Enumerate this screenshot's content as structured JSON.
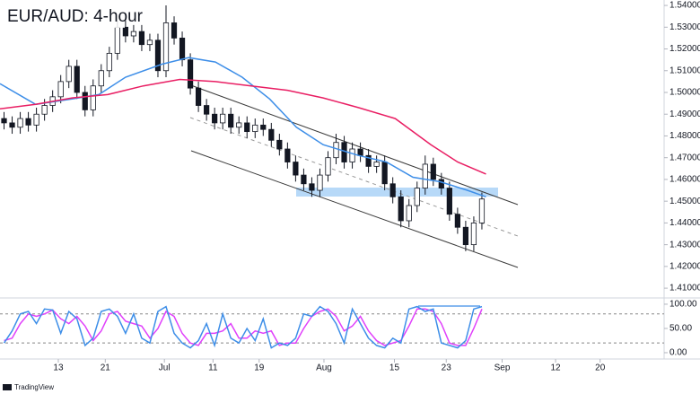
{
  "chart_data": [
    {
      "type": "candlestick",
      "title": "EUR/AUD: 4-hour",
      "x": [
        0,
        1,
        2,
        3,
        4,
        5,
        6,
        7,
        8,
        9,
        10,
        11,
        12,
        13,
        14,
        15,
        16,
        17,
        18,
        19,
        20,
        21,
        22,
        23,
        24,
        25,
        26,
        27,
        28,
        29,
        30,
        31,
        32,
        33,
        34,
        35,
        36,
        37,
        38,
        39,
        40,
        41,
        42,
        43,
        44,
        45,
        46,
        47,
        48,
        49,
        50,
        51,
        52,
        53,
        54,
        55,
        56,
        57,
        58,
        59
      ],
      "open": [
        1.488,
        1.486,
        1.484,
        1.488,
        1.485,
        1.49,
        1.494,
        1.498,
        1.505,
        1.512,
        1.5,
        1.492,
        1.503,
        1.51,
        1.518,
        1.53,
        1.526,
        1.528,
        1.522,
        1.524,
        1.51,
        1.532,
        1.525,
        1.515,
        1.502,
        1.494,
        1.49,
        1.486,
        1.49,
        1.484,
        1.486,
        1.482,
        1.485,
        1.483,
        1.478,
        1.474,
        1.468,
        1.462,
        1.458,
        1.455,
        1.462,
        1.47,
        1.477,
        1.468,
        1.474,
        1.471,
        1.466,
        1.468,
        1.458,
        1.452,
        1.441,
        1.448,
        1.456,
        1.467,
        1.46,
        1.456,
        1.444,
        1.438,
        1.43,
        1.44
      ],
      "high": [
        1.491,
        1.489,
        1.491,
        1.491,
        1.493,
        1.497,
        1.501,
        1.508,
        1.515,
        1.515,
        1.503,
        1.506,
        1.513,
        1.521,
        1.533,
        1.533,
        1.531,
        1.531,
        1.527,
        1.527,
        1.54,
        1.535,
        1.528,
        1.518,
        1.505,
        1.497,
        1.493,
        1.493,
        1.493,
        1.489,
        1.489,
        1.488,
        1.488,
        1.486,
        1.481,
        1.477,
        1.471,
        1.465,
        1.461,
        1.465,
        1.473,
        1.481,
        1.48,
        1.477,
        1.477,
        1.474,
        1.471,
        1.471,
        1.461,
        1.455,
        1.451,
        1.459,
        1.471,
        1.47,
        1.463,
        1.459,
        1.447,
        1.441,
        1.443,
        1.454
      ],
      "low": [
        1.483,
        1.481,
        1.481,
        1.482,
        1.482,
        1.487,
        1.491,
        1.495,
        1.502,
        1.497,
        1.489,
        1.489,
        1.5,
        1.507,
        1.515,
        1.523,
        1.523,
        1.519,
        1.519,
        1.507,
        1.507,
        1.522,
        1.512,
        1.499,
        1.491,
        1.487,
        1.483,
        1.483,
        1.481,
        1.481,
        1.479,
        1.479,
        1.48,
        1.475,
        1.471,
        1.465,
        1.459,
        1.455,
        1.452,
        1.452,
        1.459,
        1.467,
        1.465,
        1.465,
        1.468,
        1.463,
        1.463,
        1.455,
        1.449,
        1.438,
        1.438,
        1.445,
        1.453,
        1.457,
        1.453,
        1.441,
        1.435,
        1.427,
        1.427,
        1.437
      ],
      "close": [
        1.486,
        1.484,
        1.488,
        1.485,
        1.49,
        1.494,
        1.498,
        1.505,
        1.512,
        1.5,
        1.492,
        1.503,
        1.51,
        1.518,
        1.53,
        1.526,
        1.528,
        1.522,
        1.524,
        1.51,
        1.532,
        1.525,
        1.515,
        1.502,
        1.494,
        1.49,
        1.486,
        1.49,
        1.484,
        1.486,
        1.482,
        1.485,
        1.483,
        1.478,
        1.474,
        1.468,
        1.462,
        1.458,
        1.455,
        1.462,
        1.47,
        1.477,
        1.468,
        1.474,
        1.471,
        1.466,
        1.468,
        1.458,
        1.452,
        1.441,
        1.448,
        1.456,
        1.467,
        1.46,
        1.456,
        1.444,
        1.438,
        1.43,
        1.44,
        1.451
      ],
      "up_color": "#ffffff",
      "down_color": "#131722",
      "series": [
        {
          "type": "line",
          "color": "#3d8ee8",
          "x": [
            -0.5,
            3.9,
            8.4,
            11.7,
            15,
            19.5,
            22.8,
            26.1,
            29.4,
            32.8,
            36.1,
            39.4,
            43.8,
            47.2,
            50.5,
            53.8,
            57.2,
            59.5
          ],
          "values": [
            1.504,
            1.4945,
            1.497,
            1.499,
            1.507,
            1.513,
            1.516,
            1.514,
            1.507,
            1.497,
            1.484,
            1.476,
            1.471,
            1.468,
            1.461,
            1.459,
            1.455,
            1.452
          ]
        },
        {
          "type": "line",
          "color": "#e91e63",
          "x": [
            -0.5,
            3.9,
            8.4,
            12.8,
            17.2,
            21.7,
            26.1,
            30.5,
            35,
            39.4,
            43.8,
            48.3,
            52.7,
            56,
            59.5
          ],
          "values": [
            1.4925,
            1.4945,
            1.4975,
            1.499,
            1.503,
            1.506,
            1.505,
            1.503,
            1.501,
            1.4975,
            1.493,
            1.488,
            1.476,
            1.468,
            1.4625
          ]
        }
      ],
      "xlim": [
        -0.5,
        81.5
      ],
      "ylim": [
        1.4055,
        1.5425
      ],
      "yticks": [
        {
          "value": 1.54,
          "label": "1.54000"
        },
        {
          "value": 1.53,
          "label": "1.53000"
        },
        {
          "value": 1.52,
          "label": "1.52000"
        },
        {
          "value": 1.51,
          "label": "1.51000"
        },
        {
          "value": 1.5,
          "label": "1.50000"
        },
        {
          "value": 1.49,
          "label": "1.49000"
        },
        {
          "value": 1.48,
          "label": "1.48000"
        },
        {
          "value": 1.47,
          "label": "1.47000"
        },
        {
          "value": 1.46,
          "label": "1.46000"
        },
        {
          "value": 1.45,
          "label": "1.45000"
        },
        {
          "value": 1.44,
          "label": "1.44000"
        },
        {
          "value": 1.43,
          "label": "1.43000"
        },
        {
          "value": 1.42,
          "label": "1.42000"
        },
        {
          "value": 1.41,
          "label": "1.41000"
        }
      ],
      "grid": false
    },
    {
      "type": "line",
      "x": [
        0,
        1,
        2,
        3,
        4,
        5,
        6,
        7,
        8,
        9,
        10,
        11,
        12,
        13,
        14,
        15,
        16,
        17,
        18,
        19,
        20,
        21,
        22,
        23,
        24,
        25,
        26,
        27,
        28,
        29,
        30,
        31,
        32,
        33,
        34,
        35,
        36,
        37,
        38,
        39,
        40,
        41,
        42,
        43,
        44,
        45,
        46,
        47,
        48,
        49,
        50,
        51,
        52,
        53,
        54,
        55,
        56,
        57,
        58,
        59
      ],
      "series": [
        {
          "color": "#e040fb",
          "values": [
            25,
            30,
            60,
            80,
            75,
            80,
            88,
            70,
            60,
            75,
            55,
            25,
            45,
            80,
            85,
            65,
            60,
            55,
            30,
            50,
            85,
            75,
            40,
            20,
            15,
            40,
            40,
            45,
            60,
            30,
            30,
            45,
            40,
            45,
            15,
            20,
            20,
            50,
            75,
            85,
            90,
            75,
            45,
            55,
            75,
            45,
            25,
            15,
            20,
            25,
            55,
            90,
            90,
            85,
            60,
            20,
            15,
            15,
            50,
            90
          ]
        },
        {
          "color": "#3d8ee8",
          "values": [
            20,
            45,
            80,
            85,
            60,
            90,
            88,
            40,
            85,
            70,
            15,
            30,
            85,
            90,
            75,
            40,
            80,
            30,
            20,
            85,
            95,
            40,
            20,
            10,
            25,
            60,
            15,
            80,
            30,
            20,
            50,
            25,
            70,
            10,
            20,
            15,
            30,
            80,
            75,
            95,
            85,
            60,
            20,
            90,
            60,
            30,
            15,
            10,
            30,
            20,
            90,
            95,
            85,
            90,
            20,
            15,
            10,
            25,
            90,
            95
          ]
        }
      ],
      "levels": [
        80,
        20
      ],
      "xlim": [
        -0.5,
        81.5
      ],
      "ylim": [
        -13,
        111
      ],
      "yticks": [
        {
          "value": 100,
          "label": "100.00"
        },
        {
          "value": 50,
          "label": "50.00"
        },
        {
          "value": 0,
          "label": "0.00"
        }
      ],
      "xticks": [
        {
          "value": 6.7,
          "label": "13"
        },
        {
          "value": 12.5,
          "label": "21"
        },
        {
          "value": 19.8,
          "label": "Jul"
        },
        {
          "value": 25.8,
          "label": "11"
        },
        {
          "value": 31.5,
          "label": "19"
        },
        {
          "value": 39.5,
          "label": "Aug"
        },
        {
          "value": 48.2,
          "label": "15"
        },
        {
          "value": 54.6,
          "label": "23"
        },
        {
          "value": 61.5,
          "label": "Sep"
        },
        {
          "value": 68.1,
          "label": "12"
        },
        {
          "value": 73.6,
          "label": "20"
        }
      ]
    }
  ],
  "branding": "TradingView"
}
